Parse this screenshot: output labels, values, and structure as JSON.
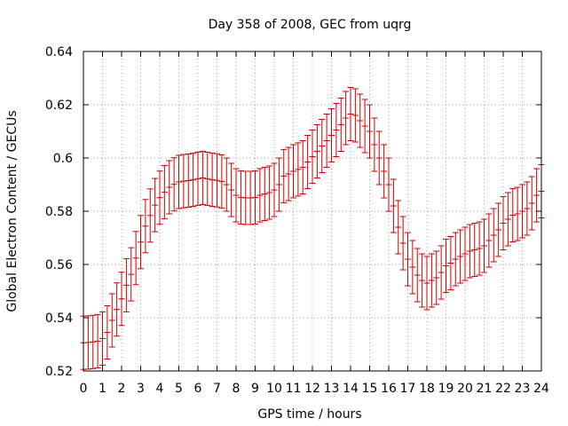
{
  "chart_data": {
    "type": "scatter",
    "title": "Day 358 of 2008, GEC from uqrg",
    "xlabel": "GPS time / hours",
    "ylabel": "Global Electron Content / GECUs",
    "xlim": [
      0,
      24
    ],
    "ylim": [
      0.52,
      0.64
    ],
    "grid": true,
    "x_ticks": [
      0,
      1,
      2,
      3,
      4,
      5,
      6,
      7,
      8,
      9,
      10,
      11,
      12,
      13,
      14,
      15,
      16,
      17,
      18,
      19,
      20,
      21,
      22,
      23,
      24
    ],
    "x_tick_labels": [
      "0",
      "1",
      "2",
      "3",
      "4",
      "5",
      "6",
      "7",
      "8",
      "9",
      "10",
      "11",
      "12",
      "13",
      "14",
      "15",
      "16",
      "17",
      "18",
      "19",
      "20",
      "21",
      "22",
      "23",
      "24"
    ],
    "y_ticks": [
      0.52,
      0.54,
      0.56,
      0.58,
      0.6,
      0.62,
      0.64
    ],
    "y_tick_labels": [
      "0.52",
      "0.54",
      "0.56",
      "0.58",
      "0.6",
      "0.62",
      "0.64"
    ],
    "series": [
      {
        "name": "GEC",
        "color": "#cc0000",
        "style": "errorbars",
        "x": [
          0,
          0.25,
          0.5,
          0.75,
          1,
          1.25,
          1.5,
          1.75,
          2,
          2.25,
          2.5,
          2.75,
          3,
          3.25,
          3.5,
          3.75,
          4,
          4.25,
          4.5,
          4.75,
          5,
          5.25,
          5.5,
          5.75,
          6,
          6.25,
          6.5,
          6.75,
          7,
          7.25,
          7.5,
          7.75,
          8,
          8.25,
          8.5,
          8.75,
          9,
          9.25,
          9.5,
          9.75,
          10,
          10.25,
          10.5,
          10.75,
          11,
          11.25,
          11.5,
          11.75,
          12,
          12.25,
          12.5,
          12.75,
          13,
          13.25,
          13.5,
          13.75,
          14,
          14.25,
          14.5,
          14.75,
          15,
          15.25,
          15.5,
          15.75,
          16,
          16.25,
          16.5,
          16.75,
          17,
          17.25,
          17.5,
          17.75,
          18,
          18.25,
          18.5,
          18.75,
          19,
          19.25,
          19.5,
          19.75,
          20,
          20.25,
          20.5,
          20.75,
          21,
          21.25,
          21.5,
          21.75,
          22,
          22.25,
          22.5,
          22.75,
          23,
          23.25,
          23.5,
          23.75,
          24
        ],
        "y": [
          0.5306,
          0.5307,
          0.5309,
          0.5312,
          0.5322,
          0.5345,
          0.539,
          0.5431,
          0.5471,
          0.5522,
          0.5563,
          0.5624,
          0.5684,
          0.5744,
          0.5784,
          0.5823,
          0.5851,
          0.5872,
          0.589,
          0.5901,
          0.591,
          0.5913,
          0.5915,
          0.5918,
          0.5922,
          0.5925,
          0.5922,
          0.5918,
          0.5916,
          0.5912,
          0.59,
          0.588,
          0.586,
          0.5852,
          0.585,
          0.585,
          0.5852,
          0.586,
          0.5865,
          0.587,
          0.588,
          0.59,
          0.5932,
          0.594,
          0.595,
          0.5957,
          0.5965,
          0.5985,
          0.6005,
          0.6025,
          0.6045,
          0.6065,
          0.6085,
          0.6105,
          0.6125,
          0.615,
          0.6165,
          0.616,
          0.614,
          0.612,
          0.61,
          0.605,
          0.6,
          0.595,
          0.59,
          0.582,
          0.574,
          0.568,
          0.562,
          0.559,
          0.556,
          0.554,
          0.553,
          0.554,
          0.555,
          0.557,
          0.5595,
          0.5605,
          0.562,
          0.563,
          0.564,
          0.565,
          0.5655,
          0.566,
          0.567,
          0.569,
          0.571,
          0.573,
          0.5755,
          0.577,
          0.5785,
          0.579,
          0.58,
          0.581,
          0.583,
          0.586,
          0.5875
        ],
        "error": 0.01
      }
    ]
  }
}
